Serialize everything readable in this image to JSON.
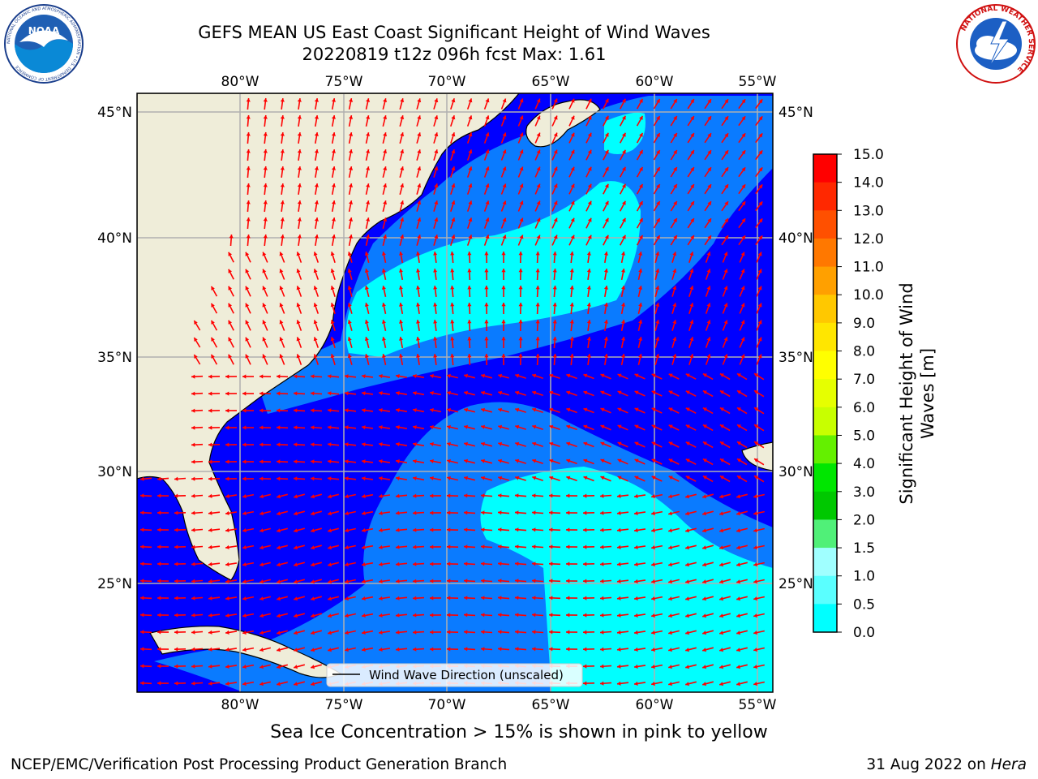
{
  "header": {
    "title_line1": "GEFS MEAN US East Coast Significant Height of Wind Waves",
    "title_line2": "20220819 t12z 096h fcst   Max: 1.61"
  },
  "logos": {
    "left": {
      "icon": "noaa-logo",
      "ring_text": "NATIONAL OCEANIC AND ATMOSPHERIC ADMINISTRATION • U.S. DEPARTMENT OF COMMERCE",
      "center_text": "NOAA"
    },
    "right": {
      "icon": "nws-logo",
      "ring_text": "NATIONAL WEATHER SERVICE"
    }
  },
  "map": {
    "lon_labels": [
      "80°W",
      "75°W",
      "70°W",
      "65°W",
      "60°W",
      "55°W"
    ],
    "lat_labels": [
      "45°N",
      "40°N",
      "35°N",
      "30°N",
      "25°N"
    ],
    "legend_label": "Wind Wave Direction (unscaled)",
    "colors": {
      "land": "#efedd9",
      "band_0_0_5": "#0000ff",
      "band_0_5_1_0": "#0a7bff",
      "band_1_0_1_5": "#00ffff",
      "band_1_5_2_0": "#5affff",
      "arrows": "#ff0000",
      "grid": "#b0b0b0"
    }
  },
  "colorbar": {
    "label": "Significant Height of Wind Waves [m]",
    "label_line1": "Significant Height of Wind",
    "label_line2": "Waves [m]",
    "ticks": [
      "15.0",
      "14.0",
      "13.0",
      "12.0",
      "11.0",
      "10.0",
      "9.0",
      "8.0",
      "7.0",
      "6.0",
      "5.0",
      "4.0",
      "3.0",
      "2.0",
      "1.5",
      "1.0",
      "0.5",
      "0.0"
    ],
    "colors": [
      "#ff0000",
      "#ff2800",
      "#ff5000",
      "#ff7800",
      "#ffa000",
      "#ffc800",
      "#ffe600",
      "#ffff00",
      "#e6ff00",
      "#c8ff00",
      "#64f000",
      "#00e600",
      "#00c800",
      "#50f078",
      "#a0ffff",
      "#5affff",
      "#00ffff",
      "#0a7bff",
      "#0000ff"
    ]
  },
  "footer": {
    "sea_ice_note": "Sea Ice Concentration > 15% is shown in pink to yellow",
    "credit_left": "NCEP/EMC/Verification Post Processing Product Generation Branch",
    "credit_date": "31 Aug 2022 on",
    "credit_host": "Hera"
  }
}
